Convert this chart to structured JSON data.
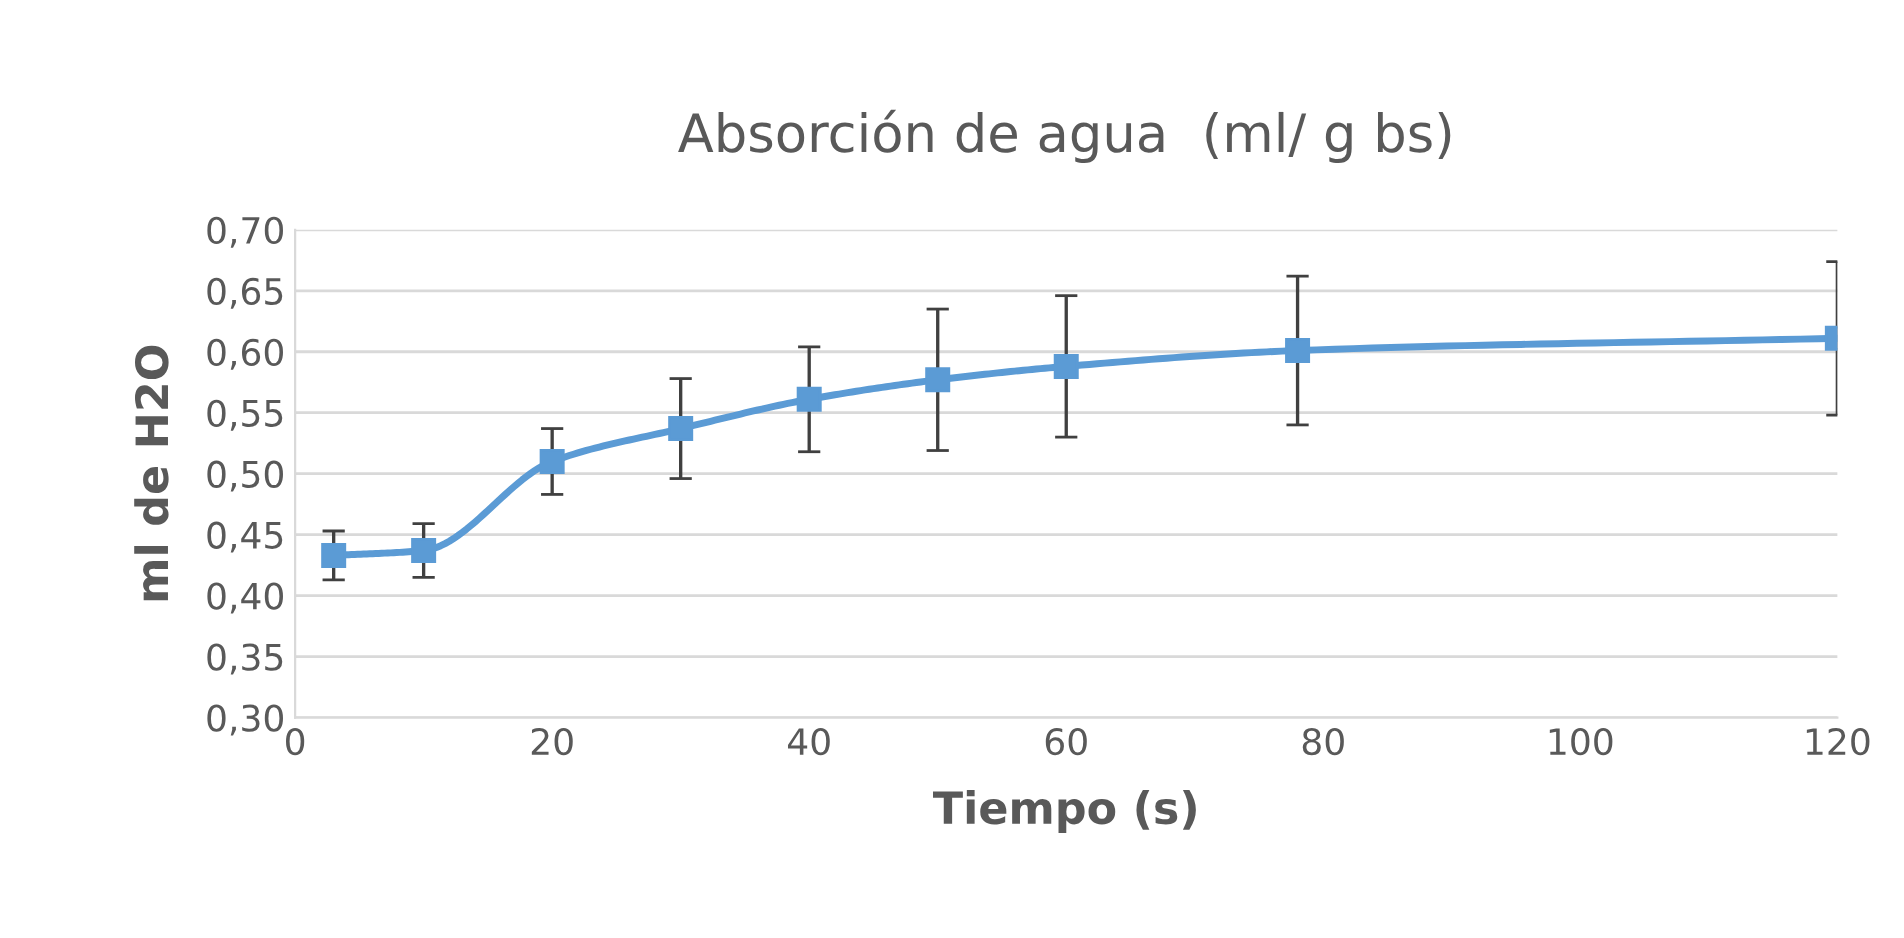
{
  "chart_data": {
    "type": "line",
    "title": "Absorción de agua  (ml/ g bs)",
    "xlabel": "Tiempo (s)",
    "ylabel": "ml de H2O",
    "x": [
      3,
      10,
      20,
      30,
      40,
      50,
      60,
      78,
      120
    ],
    "series": [
      {
        "color": "#5b9bd5",
        "values": [
          0.433,
          0.437,
          0.51,
          0.537,
          0.561,
          0.577,
          0.588,
          0.601,
          0.611
        ],
        "errors": [
          0.02,
          0.022,
          0.027,
          0.041,
          0.043,
          0.058,
          0.058,
          0.061,
          0.063
        ]
      }
    ],
    "xlim": [
      0,
      120
    ],
    "xticks": [
      0,
      20,
      40,
      60,
      80,
      100,
      120
    ],
    "ylim": [
      0.3,
      0.7
    ],
    "yticks": [
      {
        "value": 0.3,
        "label": "0,30"
      },
      {
        "value": 0.35,
        "label": "0,35"
      },
      {
        "value": 0.4,
        "label": "0,40"
      },
      {
        "value": 0.45,
        "label": "0,45"
      },
      {
        "value": 0.5,
        "label": "0,50"
      },
      {
        "value": 0.55,
        "label": "0,55"
      },
      {
        "value": 0.6,
        "label": "0,60"
      },
      {
        "value": 0.65,
        "label": "0,65"
      },
      {
        "value": 0.7,
        "label": "0,70"
      }
    ],
    "grid": "y",
    "marker": "square",
    "line_style": "solid"
  }
}
